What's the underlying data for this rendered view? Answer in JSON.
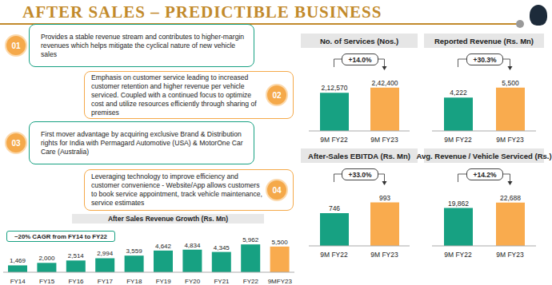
{
  "header": {
    "title": "AFTER SALES – PREDICTIBLE BUSINESS"
  },
  "points": [
    {
      "number": "01",
      "text": "Provides a stable revenue stream and contributes to higher-margin revenues which helps mitigate the cyclical nature of new vehicle sales"
    },
    {
      "number": "02",
      "text": "Emphasis on customer service leading to increased customer retention and higher revenue per vehicle serviced. Coupled with a continued focus to optimize cost and utilize resources efficiently through sharing of premises"
    },
    {
      "number": "03",
      "text": "First mover advantage by acquiring exclusive Brand & Distribution rights for India with Permagard Automotive (USA) & MotorOne Car Care (Australia)"
    },
    {
      "number": "04",
      "text": "Leveraging technology to improve efficiency and customer convenience  - Website/App allows customers to book service appointment, track vehicle maintenance, service estimates"
    }
  ],
  "chart_data": [
    {
      "type": "bar",
      "title": "After Sales Revenue Growth (Rs. Mn)",
      "annotation": "~20% CAGR from FY14 to FY22",
      "categories": [
        "FY14",
        "FY15",
        "FY16",
        "FY17",
        "FY18",
        "FY19",
        "FY20",
        "FY21",
        "FY22",
        "9MFY23"
      ],
      "values": [
        1469,
        2000,
        2514,
        2994,
        3559,
        4642,
        4834,
        4345,
        5962,
        5500
      ],
      "value_labels": [
        "1,469",
        "2,000",
        "2,514",
        "2,994",
        "3,559",
        "4,642",
        "4,834",
        "4,345",
        "5,962",
        "5,500"
      ],
      "colors": [
        "#17a182",
        "#17a182",
        "#17a182",
        "#17a182",
        "#17a182",
        "#17a182",
        "#17a182",
        "#17a182",
        "#17a182",
        "#f9ab4e"
      ],
      "ylim": [
        0,
        6500
      ],
      "data_labels": true,
      "tick_labels": "x"
    },
    {
      "type": "bar",
      "title": "No. of Services (Nos.)",
      "annotation": "+14.0%",
      "categories": [
        "9M FY22",
        "9M FY23"
      ],
      "values": [
        212570,
        242400
      ],
      "value_labels": [
        "2,12,570",
        "2,42,400"
      ],
      "colors": [
        "#17a182",
        "#f9ab4e"
      ],
      "ylim": [
        0,
        330000
      ],
      "data_labels": true,
      "tick_labels": "x"
    },
    {
      "type": "bar",
      "title": "Reported Revenue (Rs. Mn)",
      "annotation": "+30.3%",
      "categories": [
        "9M FY22",
        "9M FY23"
      ],
      "values": [
        4222,
        5500
      ],
      "value_labels": [
        "4,222",
        "5,500"
      ],
      "colors": [
        "#17a182",
        "#f9ab4e"
      ],
      "ylim": [
        0,
        7500
      ],
      "data_labels": true,
      "tick_labels": "x"
    },
    {
      "type": "bar",
      "title": "After-Sales EBITDA (Rs. Mn)",
      "annotation": "+33.0%",
      "categories": [
        "9M FY22",
        "9M FY23"
      ],
      "values": [
        746,
        993
      ],
      "colors": [
        "#17a182",
        "#f9ab4e"
      ],
      "ylim": [
        0,
        1350
      ],
      "data_labels": true,
      "tick_labels": "x"
    },
    {
      "type": "bar",
      "title": "Avg. Revenue / Vehicle Serviced (Rs.)",
      "annotation": "+14.2%",
      "categories": [
        "9M FY22",
        "9M FY23"
      ],
      "values": [
        19862,
        22688
      ],
      "value_labels": [
        "19,862",
        "22,688"
      ],
      "colors": [
        "#17a182",
        "#f9ab4e"
      ],
      "ylim": [
        0,
        31000
      ],
      "data_labels": true,
      "tick_labels": "x"
    }
  ]
}
